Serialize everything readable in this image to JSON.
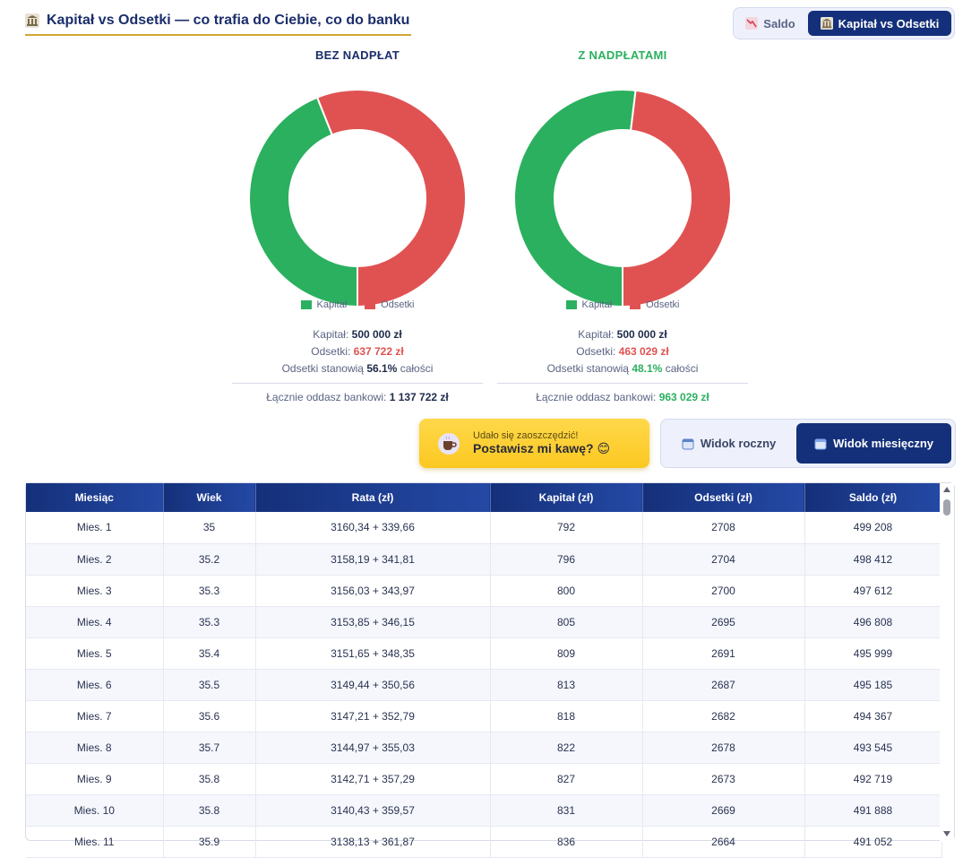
{
  "header": {
    "title": "Kapitał vs Odsetki — co trafia do Ciebie, co do banku",
    "icon": "bank-icon"
  },
  "top_toggle": {
    "saldo_label": "Saldo",
    "kvo_label": "Kapitał vs Odsetki",
    "active": "kvo"
  },
  "colors": {
    "kapital": "#2bb05f",
    "odsetki": "#e05252",
    "navy": "#14307a"
  },
  "charts": [
    {
      "title": "BEZ NADPŁAT",
      "legend": [
        "Kapitał",
        "Odsetki"
      ],
      "kapital_label": "Kapitał:",
      "kapital_value": "500 000 zł",
      "odsetki_label": "Odsetki:",
      "odsetki_value": "637 722 zł",
      "share_label": "Odsetki stanowią",
      "share_value": "56.1%",
      "share_suffix": "całości",
      "total_label": "Łącznie oddasz bankowi:",
      "total_value": "1 137 722 zł"
    },
    {
      "title": "Z NADPŁATAMI",
      "legend": [
        "Kapitał",
        "Odsetki"
      ],
      "kapital_label": "Kapitał:",
      "kapital_value": "500 000 zł",
      "odsetki_label": "Odsetki:",
      "odsetki_value": "463 029 zł",
      "share_label": "Odsetki stanowią",
      "share_value": "48.1%",
      "share_suffix": "całości",
      "total_label": "Łącznie oddasz bankowi:",
      "total_value": "963 029 zł"
    }
  ],
  "chart_data": [
    {
      "type": "pie",
      "title": "BEZ NADPŁAT",
      "categories": [
        "Kapitał",
        "Odsetki"
      ],
      "values": [
        500000,
        637722
      ]
    },
    {
      "type": "pie",
      "title": "Z NADPŁATAMI",
      "categories": [
        "Kapitał",
        "Odsetki"
      ],
      "values": [
        500000,
        463029
      ]
    }
  ],
  "coffee": {
    "small": "Udało się zaoszczędzić!",
    "big": "Postawisz mi kawę? 😊"
  },
  "view_toggle": {
    "yearly_label": "Widok roczny",
    "monthly_label": "Widok miesięczny",
    "active": "monthly"
  },
  "table": {
    "headers": [
      "Miesiąc",
      "Wiek",
      "Rata (zł)",
      "Kapitał (zł)",
      "Odsetki (zł)",
      "Saldo (zł)"
    ],
    "rows": [
      [
        "Mies. 1",
        "35",
        "3160,34 + 339,66",
        "792",
        "2708",
        "499 208"
      ],
      [
        "Mies. 2",
        "35.2",
        "3158,19 + 341,81",
        "796",
        "2704",
        "498 412"
      ],
      [
        "Mies. 3",
        "35.3",
        "3156,03 + 343,97",
        "800",
        "2700",
        "497 612"
      ],
      [
        "Mies. 4",
        "35.3",
        "3153,85 + 346,15",
        "805",
        "2695",
        "496 808"
      ],
      [
        "Mies. 5",
        "35.4",
        "3151,65 + 348,35",
        "809",
        "2691",
        "495 999"
      ],
      [
        "Mies. 6",
        "35.5",
        "3149,44 + 350,56",
        "813",
        "2687",
        "495 185"
      ],
      [
        "Mies. 7",
        "35.6",
        "3147,21 + 352,79",
        "818",
        "2682",
        "494 367"
      ],
      [
        "Mies. 8",
        "35.7",
        "3144,97 + 355,03",
        "822",
        "2678",
        "493 545"
      ],
      [
        "Mies. 9",
        "35.8",
        "3142,71 + 357,29",
        "827",
        "2673",
        "492 719"
      ],
      [
        "Mies. 10",
        "35.8",
        "3140,43 + 359,57",
        "831",
        "2669",
        "491 888"
      ],
      [
        "Mies. 11",
        "35.9",
        "3138,13 + 361,87",
        "836",
        "2664",
        "491 052"
      ]
    ]
  }
}
